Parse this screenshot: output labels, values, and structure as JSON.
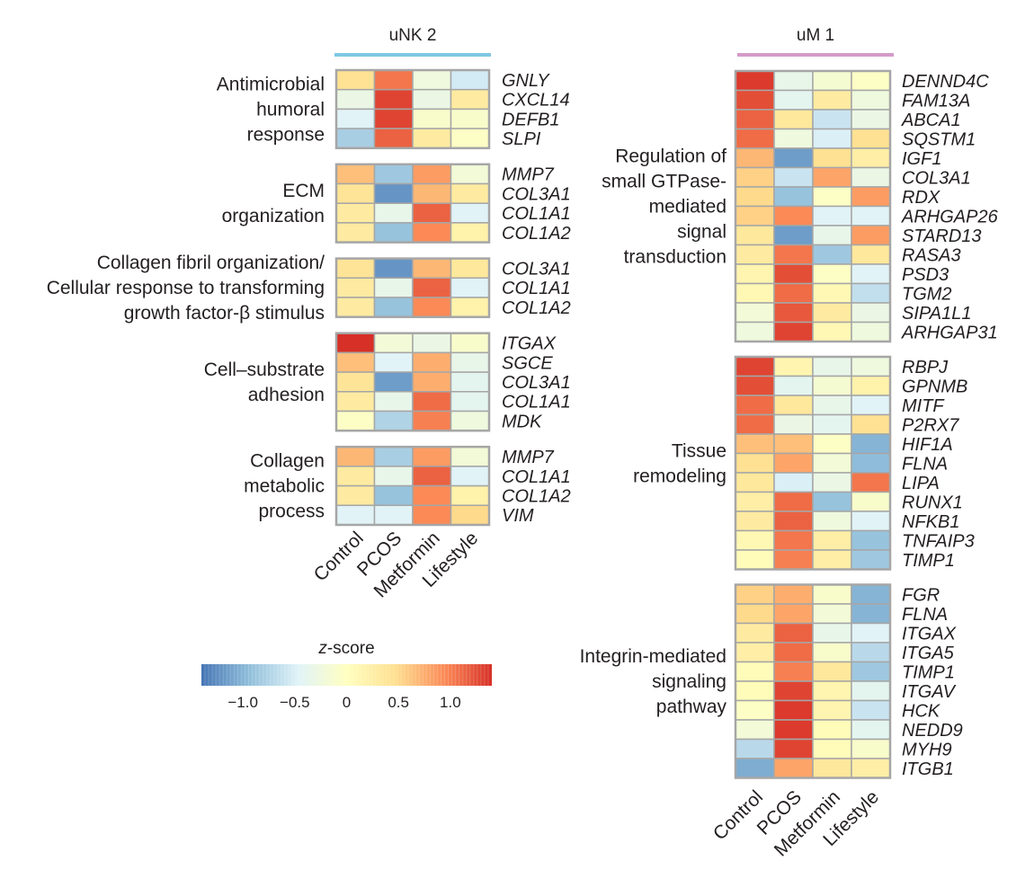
{
  "chart_data": {
    "type": "heatmap",
    "conditions": [
      "Control",
      "PCOS",
      "Metformin",
      "Lifestyle"
    ],
    "colorbar": {
      "title": "z-score",
      "range": [
        -1.4,
        1.4
      ],
      "ticks": [
        -1.0,
        -0.5,
        0,
        0.5,
        1.0
      ],
      "tick_labels": [
        "−1.0",
        "−0.5",
        "0",
        "0.5",
        "1.0"
      ]
    },
    "panels": [
      {
        "title": "uNK 2",
        "groups": [
          {
            "label_lines": [
              "Antimicrobial",
              "humoral",
              "response"
            ],
            "rows": [
              {
                "gene": "GNLY",
                "values": [
                  0.45,
                  1.05,
                  -0.25,
                  -0.55
                ]
              },
              {
                "gene": "CXCL14",
                "values": [
                  -0.3,
                  1.3,
                  -0.3,
                  0.3
                ]
              },
              {
                "gene": "DEFB1",
                "values": [
                  -0.45,
                  1.3,
                  -0.1,
                  -0.1
                ]
              },
              {
                "gene": "SLPI",
                "values": [
                  -0.8,
                  1.15,
                  0.3,
                  -0.05
                ]
              }
            ]
          },
          {
            "label_lines": [
              "ECM",
              "organization"
            ],
            "rows": [
              {
                "gene": "MMP7",
                "values": [
                  0.65,
                  -0.85,
                  0.85,
                  -0.2
                ]
              },
              {
                "gene": "COL3A1",
                "values": [
                  0.4,
                  -1.2,
                  0.7,
                  0.3
                ]
              },
              {
                "gene": "COL1A1",
                "values": [
                  0.3,
                  -0.35,
                  1.15,
                  -0.45
                ]
              },
              {
                "gene": "COL1A2",
                "values": [
                  0.3,
                  -0.9,
                  0.95,
                  0.2
                ]
              }
            ]
          },
          {
            "label_lines": [
              "Collagen fibril organization/",
              "Cellular response to transforming",
              "growth factor-β stimulus"
            ],
            "rows": [
              {
                "gene": "COL3A1",
                "values": [
                  0.4,
                  -1.2,
                  0.7,
                  0.35
                ]
              },
              {
                "gene": "COL1A1",
                "values": [
                  0.3,
                  -0.35,
                  1.15,
                  -0.45
                ]
              },
              {
                "gene": "COL1A2",
                "values": [
                  0.3,
                  -0.9,
                  0.95,
                  0.2
                ]
              }
            ]
          },
          {
            "label_lines": [
              "Cell–substrate",
              "adhesion"
            ],
            "rows": [
              {
                "gene": "ITGAX",
                "values": [
                  1.4,
                  -0.2,
                  -0.3,
                  -0.1
                ]
              },
              {
                "gene": "SGCE",
                "values": [
                  0.65,
                  -0.45,
                  0.75,
                  -0.35
                ]
              },
              {
                "gene": "COL3A1",
                "values": [
                  0.4,
                  -1.15,
                  0.75,
                  -0.4
                ]
              },
              {
                "gene": "COL1A1",
                "values": [
                  0.3,
                  -0.35,
                  1.1,
                  -0.4
                ]
              },
              {
                "gene": "MDK",
                "values": [
                  -0.05,
                  -0.75,
                  1.0,
                  -0.25
                ]
              }
            ]
          },
          {
            "label_lines": [
              "Collagen",
              "metabolic",
              "process"
            ],
            "rows": [
              {
                "gene": "MMP7",
                "values": [
                  0.7,
                  -0.8,
                  0.85,
                  -0.2
                ]
              },
              {
                "gene": "COL1A1",
                "values": [
                  0.3,
                  -0.35,
                  1.15,
                  -0.45
                ]
              },
              {
                "gene": "COL1A2",
                "values": [
                  0.3,
                  -0.9,
                  0.95,
                  0.2
                ]
              },
              {
                "gene": "VIM",
                "values": [
                  -0.45,
                  -0.45,
                  0.95,
                  0.5
                ]
              }
            ]
          }
        ],
        "xlabels": [
          "Control",
          "PCOS",
          "Metformin",
          "Lifestyle"
        ]
      },
      {
        "title": "uM 1",
        "groups": [
          {
            "label_lines": [
              "Regulation of",
              "small GTPase-",
              "mediated",
              "signal",
              "transduction"
            ],
            "rows": [
              {
                "gene": "DENND4C",
                "values": [
                  1.35,
                  -0.35,
                  -0.15,
                  -0.05
                ]
              },
              {
                "gene": "FAM13A",
                "values": [
                  1.25,
                  -0.4,
                  0.3,
                  -0.25
                ]
              },
              {
                "gene": "ABCA1",
                "values": [
                  1.15,
                  0.35,
                  -0.6,
                  -0.3
                ]
              },
              {
                "gene": "SQSTM1",
                "values": [
                  1.1,
                  -0.25,
                  -0.5,
                  0.45
                ]
              },
              {
                "gene": "IGF1",
                "values": [
                  0.7,
                  -1.15,
                  0.45,
                  0.25
                ]
              },
              {
                "gene": "COL3A1",
                "values": [
                  0.55,
                  -0.6,
                  0.8,
                  -0.3
                ]
              },
              {
                "gene": "RDX",
                "values": [
                  0.5,
                  -0.9,
                  -0.05,
                  0.85
                ]
              },
              {
                "gene": "ARHGAP26",
                "values": [
                  0.55,
                  0.95,
                  -0.45,
                  -0.45
                ]
              },
              {
                "gene": "STARD13",
                "values": [
                  0.35,
                  -1.15,
                  -0.35,
                  0.85
                ]
              },
              {
                "gene": "RASA3",
                "values": [
                  0.3,
                  1.05,
                  -0.85,
                  0.35
                ]
              },
              {
                "gene": "PSD3",
                "values": [
                  0.15,
                  1.25,
                  -0.05,
                  -0.45
                ]
              },
              {
                "gene": "TGM2",
                "values": [
                  0.1,
                  1.1,
                  0.1,
                  -0.65
                ]
              },
              {
                "gene": "SIPA1L1",
                "values": [
                  -0.2,
                  1.2,
                  0.3,
                  -0.3
                ]
              },
              {
                "gene": "ARHGAP31",
                "values": [
                  -0.25,
                  1.3,
                  0.1,
                  -0.25
                ]
              }
            ]
          },
          {
            "label_lines": [
              "Tissue",
              "remodeling"
            ],
            "rows": [
              {
                "gene": "RBPJ",
                "values": [
                  1.3,
                  0.15,
                  -0.35,
                  -0.25
                ]
              },
              {
                "gene": "GPNMB",
                "values": [
                  1.25,
                  -0.4,
                  -0.15,
                  0.2
                ]
              },
              {
                "gene": "MITF",
                "values": [
                  1.1,
                  0.35,
                  -0.35,
                  -0.45
                ]
              },
              {
                "gene": "P2RX7",
                "values": [
                  1.1,
                  -0.3,
                  -0.4,
                  0.45
                ]
              },
              {
                "gene": "HIF1A",
                "values": [
                  0.65,
                  0.65,
                  -0.05,
                  -1.0
                ]
              },
              {
                "gene": "FLNA",
                "values": [
                  0.45,
                  0.8,
                  -0.2,
                  -0.95
                ]
              },
              {
                "gene": "LIPA",
                "values": [
                  0.35,
                  -0.5,
                  -0.3,
                  1.05
                ]
              },
              {
                "gene": "RUNX1",
                "values": [
                  0.25,
                  1.1,
                  -0.9,
                  -0.1
                ]
              },
              {
                "gene": "NFKB1",
                "values": [
                  0.3,
                  1.15,
                  -0.25,
                  -0.45
                ]
              },
              {
                "gene": "TNFAIP3",
                "values": [
                  0.1,
                  1.05,
                  0.25,
                  -0.9
                ]
              },
              {
                "gene": "TIMP1",
                "values": [
                  0.05,
                  1.0,
                  0.25,
                  -0.85
                ]
              }
            ]
          },
          {
            "label_lines": [
              "Integrin-mediated",
              "signaling",
              "pathway"
            ],
            "rows": [
              {
                "gene": "FGR",
                "values": [
                  0.55,
                  0.75,
                  -0.1,
                  -1.0
                ]
              },
              {
                "gene": "FLNA",
                "values": [
                  0.5,
                  0.8,
                  -0.2,
                  -1.0
                ]
              },
              {
                "gene": "ITGAX",
                "values": [
                  0.3,
                  1.15,
                  -0.35,
                  -0.45
                ]
              },
              {
                "gene": "ITGA5",
                "values": [
                  0.25,
                  1.1,
                  -0.1,
                  -0.7
                ]
              },
              {
                "gene": "TIMP1",
                "values": [
                  0.05,
                  1.0,
                  0.35,
                  -0.85
                ]
              },
              {
                "gene": "ITGAV",
                "values": [
                  0.05,
                  1.3,
                  0.15,
                  -0.4
                ]
              },
              {
                "gene": "HCK",
                "values": [
                  -0.05,
                  1.35,
                  0.15,
                  -0.6
                ]
              },
              {
                "gene": "NEDD9",
                "values": [
                  -0.2,
                  1.35,
                  0.05,
                  -0.4
                ]
              },
              {
                "gene": "MYH9",
                "values": [
                  -0.7,
                  1.3,
                  0.05,
                  -0.1
                ]
              },
              {
                "gene": "ITGB1",
                "values": [
                  -1.05,
                  0.8,
                  0.35,
                  0.25
                ]
              }
            ]
          }
        ],
        "xlabels": [
          "Control",
          "PCOS",
          "Metformin",
          "Lifestyle"
        ]
      }
    ]
  },
  "colors": {
    "scale": [
      "#4575b4",
      "#91bfdb",
      "#e0f3f8",
      "#ffffbf",
      "#fee090",
      "#fc8d59",
      "#d73027"
    ],
    "header_bar_uNK2": "#7ec8e3",
    "header_bar_uM1": "#d49bc9",
    "cell_border": "#a6a6a6"
  }
}
